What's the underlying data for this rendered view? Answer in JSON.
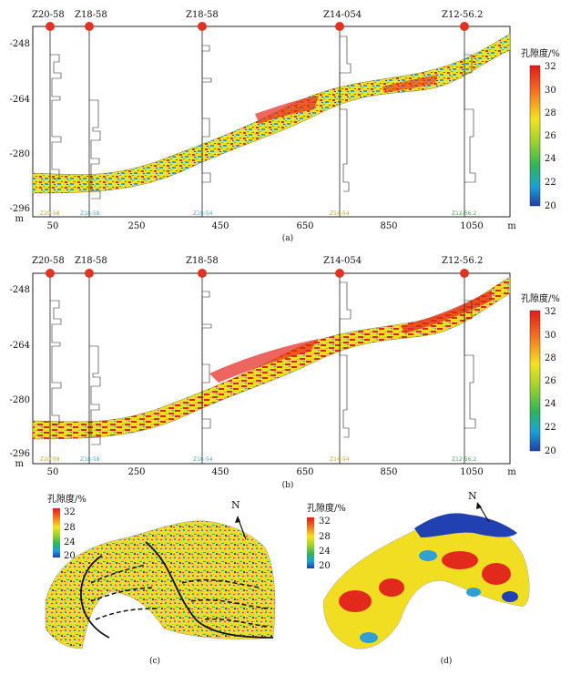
{
  "panel_a": {
    "label": "(a)",
    "wells": [
      {
        "name": "Z20-58",
        "tag": "Z20-58"
      },
      {
        "name": "Z18-58",
        "tag": "Z18-58"
      },
      {
        "name": "Z18-58",
        "tag": "Z18-54"
      },
      {
        "name": "Z14-054",
        "tag": "Z14-54"
      },
      {
        "name": "Z12-56.2",
        "tag": "Z12-56.2"
      }
    ],
    "y_ticks": [
      "-248",
      "-264",
      "-280",
      "-296"
    ],
    "y_unit": "m",
    "x_ticks": [
      "50",
      "250",
      "450",
      "650",
      "850",
      "1050"
    ],
    "x_unit": "m",
    "legend": {
      "title": "孔隙度/%",
      "ticks": [
        "32",
        "30",
        "28",
        "26",
        "24",
        "22",
        "20"
      ]
    }
  },
  "panel_b": {
    "label": "(b)",
    "wells": [
      {
        "name": "Z20-58",
        "tag": "Z20-58"
      },
      {
        "name": "Z18-58",
        "tag": "Z18-58"
      },
      {
        "name": "Z18-58",
        "tag": "Z18-54"
      },
      {
        "name": "Z14-054",
        "tag": "Z14-54"
      },
      {
        "name": "Z12-56.2",
        "tag": "Z12-56.2"
      }
    ],
    "y_ticks": [
      "-248",
      "-264",
      "-280",
      "-296"
    ],
    "y_unit": "m",
    "x_ticks": [
      "50",
      "250",
      "450",
      "650",
      "850",
      "1050"
    ],
    "x_unit": "m",
    "legend": {
      "title": "孔隙度/%",
      "ticks": [
        "32",
        "30",
        "28",
        "26",
        "24",
        "22",
        "20"
      ]
    }
  },
  "panel_c": {
    "label": "(c)",
    "north": "N",
    "legend": {
      "title": "孔隙度/%",
      "ticks": [
        "32",
        "28",
        "24",
        "20"
      ]
    }
  },
  "panel_d": {
    "label": "(d)",
    "north": "N",
    "legend": {
      "title": "孔隙度/%",
      "ticks": [
        "32",
        "28",
        "24",
        "20"
      ]
    }
  },
  "colors": {
    "well_marker": "#e23224",
    "high": "#e8221b",
    "mid": "#f2e21e",
    "low": "#2346b8"
  }
}
